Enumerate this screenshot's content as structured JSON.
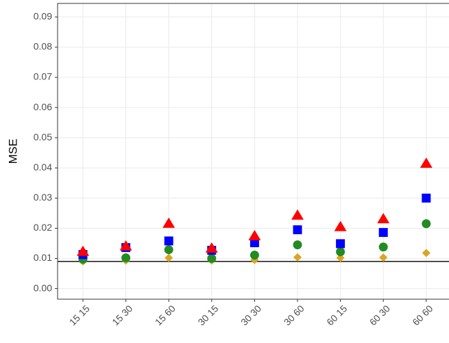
{
  "chart_data": {
    "type": "scatter",
    "y_label": "MSE",
    "categories": [
      "15 15",
      "15 30",
      "15 60",
      "30 15",
      "30 30",
      "30 60",
      "60 15",
      "60 30",
      "60 60"
    ],
    "series": [
      {
        "shape": "diamond",
        "color": "#daa520",
        "values": [
          0.009,
          0.0093,
          0.0102,
          0.0093,
          0.0095,
          0.0104,
          0.0102,
          0.0103,
          0.0118
        ]
      },
      {
        "shape": "circle",
        "color": "#228b22",
        "values": [
          0.0097,
          0.0102,
          0.0129,
          0.01,
          0.0111,
          0.0145,
          0.0122,
          0.0138,
          0.0215
        ]
      },
      {
        "shape": "square",
        "color": "#0000ff",
        "values": [
          0.0113,
          0.0136,
          0.0158,
          0.0127,
          0.0152,
          0.0195,
          0.0149,
          0.0186,
          0.03
        ]
      },
      {
        "shape": "triangle",
        "color": "#ff0000",
        "values": [
          0.0122,
          0.014,
          0.0215,
          0.0133,
          0.0174,
          0.0242,
          0.0204,
          0.023,
          0.0414
        ]
      }
    ],
    "hline": 0.009,
    "ylim": [
      -0.0035,
      0.0945
    ],
    "yticks": [
      {
        "value": 0,
        "label": "0.00"
      },
      {
        "value": 0.01,
        "label": "0.01"
      },
      {
        "value": 0.02,
        "label": "0.02"
      },
      {
        "value": 0.03,
        "label": "0.03"
      },
      {
        "value": 0.04,
        "label": "0.04"
      },
      {
        "value": 0.05,
        "label": "0.05"
      },
      {
        "value": 0.06,
        "label": "0.06"
      },
      {
        "value": 0.07,
        "label": "0.07"
      },
      {
        "value": 0.08,
        "label": "0.08"
      },
      {
        "value": 0.09,
        "label": "0.09"
      }
    ],
    "grid": true
  }
}
